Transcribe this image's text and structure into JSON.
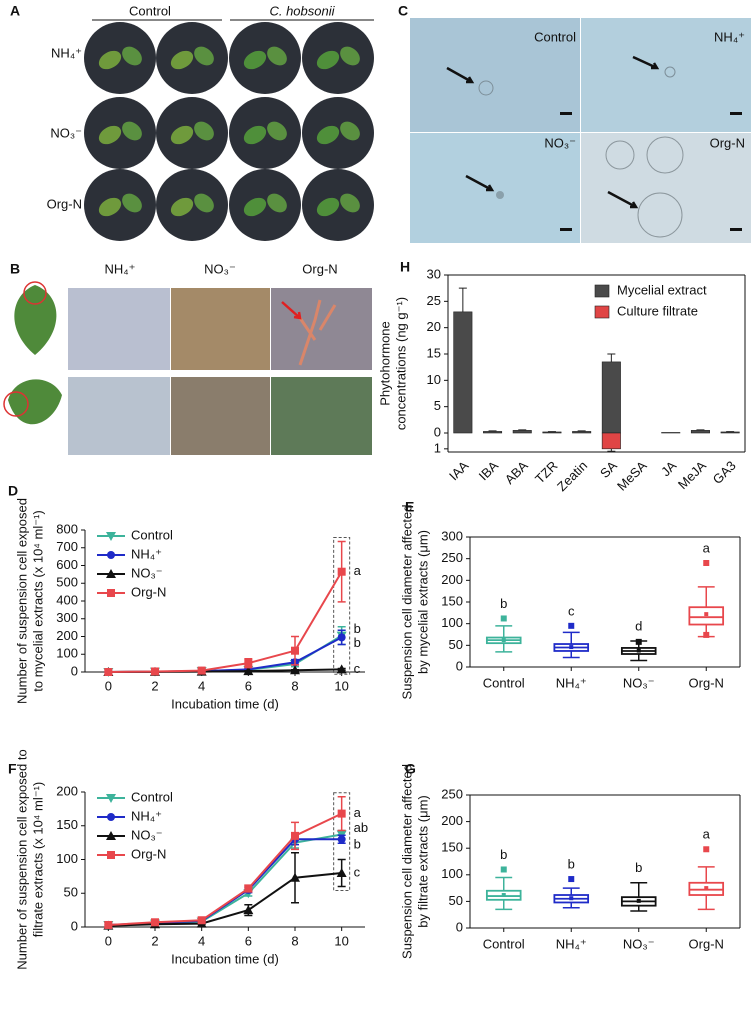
{
  "panels": {
    "A": {
      "label": "A",
      "columns": [
        "Control",
        "C. hobsonii"
      ],
      "rows": [
        "NH₄⁺",
        "NO₃⁻",
        "Org-N"
      ]
    },
    "B": {
      "label": "B",
      "columns": [
        "NH₄⁺",
        "NO₃⁻",
        "Org-N"
      ]
    },
    "C": {
      "label": "C",
      "images": [
        "Control",
        "NH₄⁺",
        "NO₃⁻",
        "Org-N"
      ]
    }
  },
  "chart_data": [
    {
      "type": "bar",
      "panel": "H",
      "ylabel": [
        "Phytohormone",
        "concentrations (ng g⁻¹)"
      ],
      "categories": [
        "IAA",
        "IBA",
        "ABA",
        "TZR",
        "Zeatin",
        "SA",
        "MeSA",
        "JA",
        "MeJA",
        "GA3"
      ],
      "series": [
        {
          "name": "Mycelial extract",
          "color": "#4a4a4a",
          "values": [
            23,
            0.3,
            0.5,
            0.2,
            0.3,
            13.5,
            0,
            0.1,
            0.5,
            0.2
          ],
          "errors": [
            4.5,
            0.1,
            0.1,
            0.05,
            0.1,
            1.5,
            0,
            0,
            0.1,
            0.05
          ]
        },
        {
          "name": "Culture filtrate",
          "color": "#e04545",
          "axis": "y2",
          "values": [
            0,
            0,
            0,
            0,
            0,
            1,
            0,
            0,
            0,
            0
          ],
          "errors": [
            0,
            0,
            0,
            0,
            0,
            0.15,
            0,
            0,
            0,
            0
          ]
        }
      ],
      "ylim": [
        0,
        30
      ],
      "yticks": [
        0,
        5,
        10,
        15,
        20,
        25,
        30
      ],
      "y2lim": [
        0,
        1.2
      ],
      "y2ticks": [
        1
      ],
      "legend": "top-right"
    },
    {
      "type": "line",
      "panel": "D",
      "ylabel": [
        "Number of suspension cell exposed",
        "to mycelial extracts (x 10⁴ ml⁻¹)"
      ],
      "xlabel": "Incubation time (d)",
      "x": [
        0,
        2,
        4,
        6,
        8,
        10
      ],
      "series": [
        {
          "name": "Control",
          "color": "#3db39b",
          "marker": "triangle-down",
          "values": [
            0,
            2,
            5,
            12,
            45,
            205
          ],
          "errors": [
            0,
            1,
            2,
            5,
            15,
            50
          ],
          "letter": "b"
        },
        {
          "name": "NH₄⁺",
          "color": "#1f2bc8",
          "marker": "circle",
          "values": [
            0,
            2,
            5,
            15,
            55,
            195
          ],
          "errors": [
            0,
            1,
            2,
            5,
            15,
            40
          ],
          "letter": "b"
        },
        {
          "name": "NO₃⁻",
          "color": "#111111",
          "marker": "triangle",
          "values": [
            0,
            1,
            2,
            5,
            10,
            15
          ],
          "errors": [
            0,
            0,
            0,
            2,
            3,
            5
          ],
          "letter": "c"
        },
        {
          "name": "Org-N",
          "color": "#e8474c",
          "marker": "square",
          "values": [
            0,
            3,
            8,
            50,
            120,
            565
          ],
          "errors": [
            0,
            1,
            3,
            25,
            80,
            170
          ],
          "letter": "a"
        }
      ],
      "xlim": [
        -1,
        11
      ],
      "xticks": [
        0,
        2,
        4,
        6,
        8,
        10
      ],
      "ylim": [
        0,
        800
      ],
      "yticks": [
        0,
        100,
        200,
        300,
        400,
        500,
        600,
        700,
        800
      ],
      "legend": "top-left"
    },
    {
      "type": "box",
      "panel": "E",
      "ylabel": [
        "Suspension cell diameter affected",
        "by mycelial extracts (μm)"
      ],
      "categories": [
        "Control",
        "NH₄⁺",
        "NO₃⁻",
        "Org-N"
      ],
      "colors": [
        "#3db39b",
        "#1f2bc8",
        "#111111",
        "#e8474c"
      ],
      "letters": [
        "b",
        "c",
        "d",
        "a"
      ],
      "boxes": [
        {
          "whisker_low": 35,
          "q1": 55,
          "median": 62,
          "q3": 68,
          "whisker_high": 95,
          "mean": 62,
          "outliers": [
            112
          ]
        },
        {
          "whisker_low": 22,
          "q1": 37,
          "median": 45,
          "q3": 53,
          "whisker_high": 80,
          "mean": 46,
          "outliers": [
            95
          ]
        },
        {
          "whisker_low": 15,
          "q1": 30,
          "median": 37,
          "q3": 44,
          "whisker_high": 60,
          "mean": 38,
          "outliers": [
            58
          ]
        },
        {
          "whisker_low": 70,
          "q1": 98,
          "median": 115,
          "q3": 138,
          "whisker_high": 185,
          "mean": 122,
          "outliers": [
            240,
            74
          ]
        }
      ],
      "ylim": [
        0,
        300
      ],
      "yticks": [
        0,
        50,
        100,
        150,
        200,
        250,
        300
      ]
    },
    {
      "type": "line",
      "panel": "F",
      "ylabel": [
        "Number of suspension cell exposed to",
        "filtrate extracts (x 10⁴ ml⁻¹)"
      ],
      "xlabel": "Incubation time (d)",
      "x": [
        0,
        2,
        4,
        6,
        8,
        10
      ],
      "series": [
        {
          "name": "Control",
          "color": "#3db39b",
          "marker": "triangle-down",
          "values": [
            3,
            5,
            8,
            50,
            125,
            137
          ],
          "errors": [
            0,
            1,
            1,
            4,
            8,
            6
          ],
          "letter": "ab"
        },
        {
          "name": "NH₄⁺",
          "color": "#1f2bc8",
          "marker": "circle",
          "values": [
            3,
            6,
            9,
            55,
            130,
            130
          ],
          "errors": [
            0,
            1,
            1,
            4,
            8,
            6
          ],
          "letter": "b"
        },
        {
          "name": "NO₃⁻",
          "color": "#111111",
          "marker": "triangle",
          "values": [
            2,
            4,
            5,
            25,
            73,
            80
          ],
          "errors": [
            0,
            1,
            1,
            8,
            37,
            20
          ],
          "letter": "c"
        },
        {
          "name": "Org-N",
          "color": "#e8474c",
          "marker": "square",
          "values": [
            3,
            7,
            10,
            57,
            135,
            168
          ],
          "errors": [
            0,
            1,
            2,
            5,
            20,
            25
          ],
          "letter": "a"
        }
      ],
      "xlim": [
        -1,
        11
      ],
      "xticks": [
        0,
        2,
        4,
        6,
        8,
        10
      ],
      "ylim": [
        0,
        200
      ],
      "yticks": [
        0,
        50,
        100,
        150,
        200
      ],
      "legend": "top-left"
    },
    {
      "type": "box",
      "panel": "G",
      "ylabel": [
        "Suspension cell diameter affected",
        "by filtrate extracts (μm)"
      ],
      "categories": [
        "Control",
        "NH₄⁺",
        "NO₃⁻",
        "Org-N"
      ],
      "colors": [
        "#3db39b",
        "#1f2bc8",
        "#111111",
        "#e8474c"
      ],
      "letters": [
        "b",
        "b",
        "b",
        "a"
      ],
      "boxes": [
        {
          "whisker_low": 35,
          "q1": 53,
          "median": 60,
          "q3": 70,
          "whisker_high": 95,
          "mean": 62,
          "outliers": [
            110
          ]
        },
        {
          "whisker_low": 38,
          "q1": 48,
          "median": 55,
          "q3": 62,
          "whisker_high": 75,
          "mean": 56,
          "outliers": [
            92
          ]
        },
        {
          "whisker_low": 32,
          "q1": 42,
          "median": 50,
          "q3": 58,
          "whisker_high": 85,
          "mean": 51,
          "outliers": []
        },
        {
          "whisker_low": 35,
          "q1": 62,
          "median": 72,
          "q3": 85,
          "whisker_high": 115,
          "mean": 75,
          "outliers": [
            148
          ]
        }
      ],
      "ylim": [
        0,
        250
      ],
      "yticks": [
        0,
        50,
        100,
        150,
        200,
        250
      ]
    }
  ]
}
